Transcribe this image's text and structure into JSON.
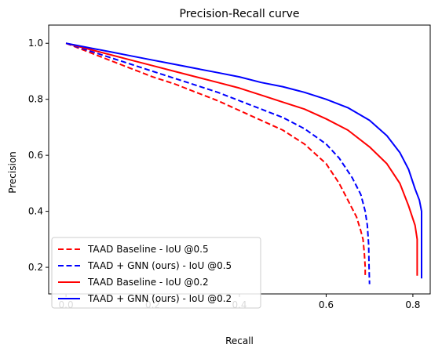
{
  "chart_data": {
    "type": "line",
    "title": "Precision-Recall curve",
    "xlabel": "Recall",
    "ylabel": "Precision",
    "xlim": [
      -0.04,
      0.84
    ],
    "ylim": [
      0.105,
      1.065
    ],
    "xticks": [
      "0.0",
      "0.2",
      "0.4",
      "0.6",
      "0.8"
    ],
    "xtick_values": [
      0.0,
      0.2,
      0.4,
      0.6,
      0.8
    ],
    "yticks": [
      "0.2",
      "0.4",
      "0.6",
      "0.8",
      "1.0"
    ],
    "ytick_values": [
      0.2,
      0.4,
      0.6,
      0.8,
      1.0
    ],
    "grid": false,
    "legend_position": "lower-left",
    "series": [
      {
        "name": "TAAD Baseline - IoU @0.5",
        "color": "#ff0000",
        "linestyle": "dashed",
        "x": [
          0.0,
          0.05,
          0.1,
          0.15,
          0.2,
          0.25,
          0.3,
          0.35,
          0.4,
          0.45,
          0.5,
          0.55,
          0.6,
          0.63,
          0.65,
          0.67,
          0.68,
          0.685,
          0.688,
          0.69,
          0.69
        ],
        "y": [
          1.0,
          0.97,
          0.94,
          0.91,
          0.88,
          0.855,
          0.825,
          0.795,
          0.76,
          0.725,
          0.69,
          0.64,
          0.57,
          0.5,
          0.44,
          0.38,
          0.33,
          0.3,
          0.25,
          0.2,
          0.17
        ]
      },
      {
        "name": "TAAD + GNN (ours) - IoU @0.5",
        "color": "#0000ff",
        "linestyle": "dashed",
        "x": [
          0.0,
          0.05,
          0.1,
          0.15,
          0.2,
          0.25,
          0.3,
          0.35,
          0.4,
          0.45,
          0.5,
          0.55,
          0.6,
          0.63,
          0.66,
          0.68,
          0.69,
          0.695,
          0.698,
          0.699,
          0.7
        ],
        "y": [
          1.0,
          0.975,
          0.95,
          0.925,
          0.9,
          0.875,
          0.85,
          0.825,
          0.795,
          0.765,
          0.735,
          0.695,
          0.64,
          0.59,
          0.52,
          0.46,
          0.4,
          0.35,
          0.28,
          0.2,
          0.14
        ]
      },
      {
        "name": "TAAD Baseline - IoU @0.2",
        "color": "#ff0000",
        "linestyle": "solid",
        "x": [
          0.0,
          0.05,
          0.1,
          0.15,
          0.2,
          0.25,
          0.3,
          0.35,
          0.4,
          0.45,
          0.5,
          0.55,
          0.6,
          0.65,
          0.7,
          0.74,
          0.77,
          0.79,
          0.805,
          0.81,
          0.81,
          0.81
        ],
        "y": [
          1.0,
          0.98,
          0.96,
          0.94,
          0.92,
          0.9,
          0.88,
          0.86,
          0.84,
          0.815,
          0.79,
          0.765,
          0.73,
          0.69,
          0.63,
          0.57,
          0.5,
          0.42,
          0.35,
          0.3,
          0.22,
          0.17
        ]
      },
      {
        "name": "TAAD + GNN (ours) - IoU @0.2",
        "color": "#0000ff",
        "linestyle": "solid",
        "x": [
          0.0,
          0.05,
          0.1,
          0.15,
          0.2,
          0.25,
          0.3,
          0.35,
          0.4,
          0.45,
          0.5,
          0.55,
          0.6,
          0.65,
          0.7,
          0.74,
          0.77,
          0.79,
          0.805,
          0.815,
          0.82,
          0.82,
          0.82
        ],
        "y": [
          1.0,
          0.985,
          0.97,
          0.955,
          0.94,
          0.925,
          0.91,
          0.895,
          0.88,
          0.86,
          0.845,
          0.825,
          0.8,
          0.77,
          0.725,
          0.67,
          0.61,
          0.55,
          0.48,
          0.44,
          0.4,
          0.3,
          0.16
        ]
      }
    ]
  }
}
